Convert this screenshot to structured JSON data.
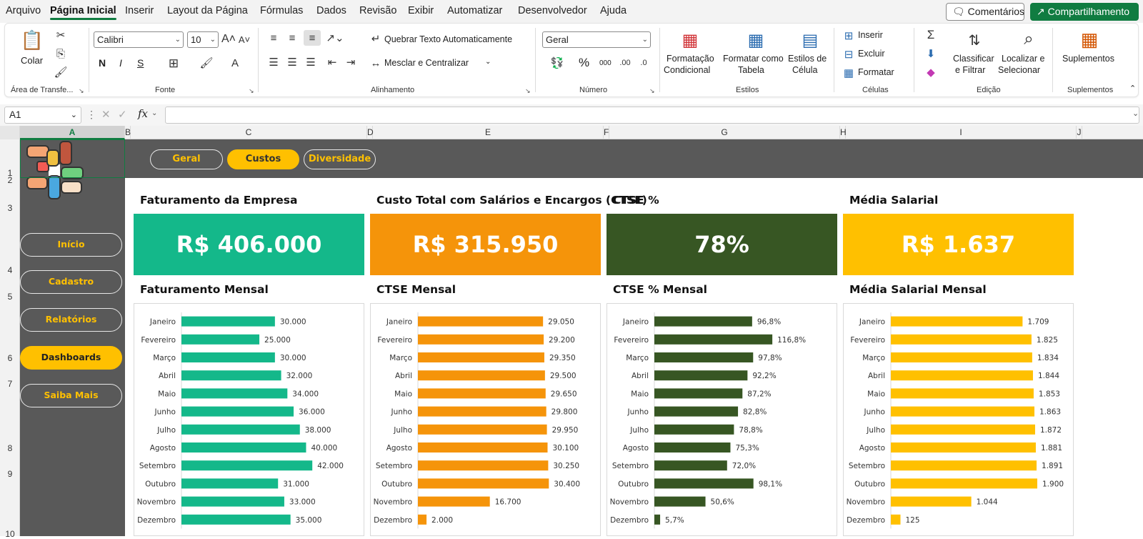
{
  "menu": {
    "items": [
      "Arquivo",
      "Página Inicial",
      "Inserir",
      "Layout da Página",
      "Fórmulas",
      "Dados",
      "Revisão",
      "Exibir",
      "Automatizar",
      "Desenvolvedor",
      "Ajuda"
    ],
    "active": "Página Inicial",
    "comments_label": "Comentários",
    "share_label": "Compartilhamento"
  },
  "ribbon": {
    "clipboard": {
      "paste_label": "Colar",
      "group_label": "Área de Transfe..."
    },
    "font": {
      "name": "Calibri",
      "size": "10",
      "bold": "N",
      "italic": "I",
      "underline": "S",
      "group_label": "Fonte"
    },
    "alignment": {
      "wrap_label": "Quebrar Texto Automaticamente",
      "merge_label": "Mesclar e Centralizar",
      "group_label": "Alinhamento"
    },
    "number": {
      "format": "Geral",
      "percent": "%",
      "thousands": "000",
      "group_label": "Número"
    },
    "styles": {
      "conditional_line1": "Formatação",
      "conditional_line2": "Condicional",
      "table_line1": "Formatar como",
      "table_line2": "Tabela",
      "cell_line1": "Estilos de",
      "cell_line2": "Célula",
      "group_label": "Estilos"
    },
    "cells": {
      "insert": "Inserir",
      "delete": "Excluir",
      "format": "Formatar",
      "group_label": "Células"
    },
    "editing": {
      "sort_line1": "Classificar",
      "sort_line2": "e Filtrar",
      "find_line1": "Localizar e",
      "find_line2": "Selecionar",
      "group_label": "Edição"
    },
    "addins": {
      "label": "Suplementos",
      "group_label": "Suplementos"
    }
  },
  "formula_bar": {
    "name_box": "A1",
    "fx": "fx",
    "formula": ""
  },
  "columns": [
    "A",
    "B",
    "C",
    "D",
    "E",
    "F",
    "G",
    "H",
    "I",
    "J"
  ],
  "rows": [
    "1",
    "2",
    "3",
    "4",
    "5",
    "6",
    "7",
    "8",
    "9",
    "10"
  ],
  "dashboard": {
    "tabs": [
      {
        "label": "Geral",
        "active": false
      },
      {
        "label": "Custos",
        "active": true
      },
      {
        "label": "Diversidade",
        "active": false
      }
    ],
    "nav": [
      {
        "label": "Início",
        "active": false
      },
      {
        "label": "Cadastro",
        "active": false
      },
      {
        "label": "Relatórios",
        "active": false
      },
      {
        "label": "Dashboards",
        "active": true
      },
      {
        "label": "Saiba Mais",
        "active": false
      }
    ],
    "kpis": [
      {
        "title": "Faturamento da Empresa",
        "value": "R$ 406.000",
        "color": "#14b88a"
      },
      {
        "title": "Custo Total com Salários e Encargos (CTSE)",
        "value": "R$ 315.950",
        "color": "#f5940a"
      },
      {
        "title": "CTSE %",
        "value": "78%",
        "color": "#375623"
      },
      {
        "title": "Média Salarial",
        "value": "R$ 1.637",
        "color": "#ffc000"
      }
    ]
  },
  "chart_data": [
    {
      "type": "bar",
      "orientation": "horizontal",
      "title": "Faturamento Mensal",
      "color": "#14b88a",
      "categories": [
        "Janeiro",
        "Fevereiro",
        "Março",
        "Abril",
        "Maio",
        "Junho",
        "Julho",
        "Agosto",
        "Setembro",
        "Outubro",
        "Novembro",
        "Dezembro"
      ],
      "values": [
        30000,
        25000,
        30000,
        32000,
        34000,
        36000,
        38000,
        40000,
        42000,
        31000,
        33000,
        35000
      ],
      "labels": [
        "30.000",
        "25.000",
        "30.000",
        "32.000",
        "34.000",
        "36.000",
        "38.000",
        "40.000",
        "42.000",
        "31.000",
        "33.000",
        "35.000"
      ],
      "xlim": [
        0,
        47000
      ]
    },
    {
      "type": "bar",
      "orientation": "horizontal",
      "title": "CTSE Mensal",
      "color": "#f5940a",
      "categories": [
        "Janeiro",
        "Fevereiro",
        "Março",
        "Abril",
        "Maio",
        "Junho",
        "Julho",
        "Agosto",
        "Setembro",
        "Outubro",
        "Novembro",
        "Dezembro"
      ],
      "values": [
        29050,
        29200,
        29350,
        29500,
        29650,
        29800,
        29950,
        30100,
        30250,
        30400,
        16700,
        2000
      ],
      "labels": [
        "29.050",
        "29.200",
        "29.350",
        "29.500",
        "29.650",
        "29.800",
        "29.950",
        "30.100",
        "30.250",
        "30.400",
        "16.700",
        "2.000"
      ],
      "xlim": [
        0,
        34000
      ]
    },
    {
      "type": "bar",
      "orientation": "horizontal",
      "title": "CTSE % Mensal",
      "color": "#375623",
      "categories": [
        "Janeiro",
        "Fevereiro",
        "Março",
        "Abril",
        "Maio",
        "Junho",
        "Julho",
        "Agosto",
        "Setembro",
        "Outubro",
        "Novembro",
        "Dezembro"
      ],
      "values": [
        96.8,
        116.8,
        97.8,
        92.2,
        87.2,
        82.8,
        78.8,
        75.3,
        72.0,
        98.1,
        50.6,
        5.7
      ],
      "labels": [
        "96,8%",
        "116,8%",
        "97,8%",
        "92,2%",
        "87,2%",
        "82,8%",
        "78,8%",
        "75,3%",
        "72,0%",
        "98,1%",
        "50,6%",
        "5,7%"
      ],
      "xlim": [
        0,
        145
      ]
    },
    {
      "type": "bar",
      "orientation": "horizontal",
      "title": "Média Salarial Mensal",
      "color": "#ffc000",
      "categories": [
        "Janeiro",
        "Fevereiro",
        "Março",
        "Abril",
        "Maio",
        "Junho",
        "Julho",
        "Agosto",
        "Setembro",
        "Outubro",
        "Novembro",
        "Dezembro"
      ],
      "values": [
        1709,
        1825,
        1834,
        1844,
        1853,
        1863,
        1872,
        1881,
        1891,
        1900,
        1044,
        125
      ],
      "labels": [
        "1.709",
        "1.825",
        "1.834",
        "1.844",
        "1.853",
        "1.863",
        "1.872",
        "1.881",
        "1.891",
        "1.900",
        "1.044",
        "125"
      ],
      "xlim": [
        0,
        1900
      ]
    }
  ]
}
